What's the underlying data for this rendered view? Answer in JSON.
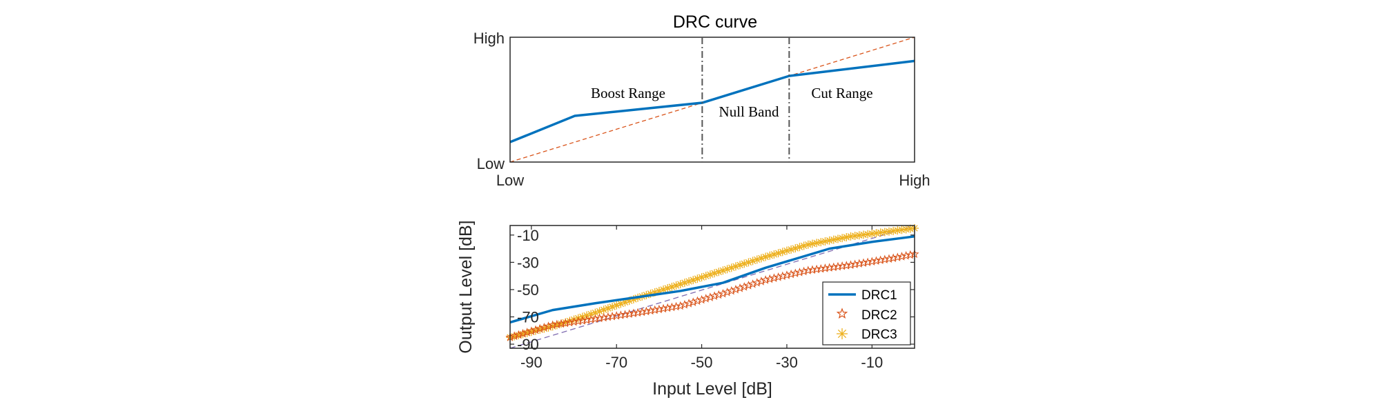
{
  "colors": {
    "drc1": "#0072BD",
    "drc2": "#D95319",
    "drc3": "#EDB120",
    "reference": "#7E6BB0",
    "divider": "#555555",
    "axis": "#262626"
  },
  "icons": {
    "drc2_marker": "pentagram-marker",
    "drc3_marker": "asterisk-marker"
  },
  "chart_data": [
    {
      "type": "line",
      "title": "DRC curve",
      "xlabel": "",
      "ylabel": "",
      "x_ticks": [
        "Low",
        "High"
      ],
      "y_ticks": [
        "Low",
        "High"
      ],
      "xlim": [
        0,
        1
      ],
      "ylim": [
        0,
        1
      ],
      "grid": false,
      "regions": [
        "Boost Range",
        "Null Band",
        "Cut Range"
      ],
      "dividers_x": [
        0.475,
        0.69
      ],
      "series": [
        {
          "name": "",
          "style": "solid",
          "x": [
            0,
            0.16,
            0.475,
            0.69,
            1
          ],
          "y": [
            0.16,
            0.37,
            0.475,
            0.69,
            0.81
          ]
        },
        {
          "name": "",
          "style": "dashed",
          "x": [
            0,
            1
          ],
          "y": [
            0,
            1
          ]
        }
      ]
    },
    {
      "type": "line",
      "title": "",
      "xlabel": "Input Level [dB]",
      "ylabel": "Output Level [dB]",
      "xlim": [
        -95,
        0
      ],
      "ylim": [
        -93,
        -3
      ],
      "x_ticks": [
        "-90",
        "-70",
        "-50",
        "-30",
        "-10"
      ],
      "y_ticks": [
        "-10",
        "-30",
        "-50",
        "-70",
        "-90"
      ],
      "grid": false,
      "legend": "bottom-right",
      "series": [
        {
          "name": "DRC1",
          "style": "solid",
          "x": [
            -95,
            -85,
            -75,
            -65,
            -55,
            -45,
            -35,
            -20,
            -10,
            0
          ],
          "y": [
            -74,
            -65,
            -60,
            -55.5,
            -51,
            -45,
            -34,
            -20,
            -15,
            -11
          ]
        },
        {
          "name": "DRC2",
          "style": "pentagram",
          "x": [
            -95,
            -85,
            -75,
            -65,
            -55,
            -45,
            -35,
            -25,
            -15,
            -5,
            0
          ],
          "y": [
            -85,
            -76,
            -71.5,
            -67,
            -62,
            -53,
            -43,
            -36,
            -32,
            -27,
            -24
          ]
        },
        {
          "name": "DRC3",
          "style": "asterisk",
          "x": [
            -95,
            -85,
            -75,
            -65,
            -55,
            -45,
            -35,
            -25,
            -15,
            -5,
            0
          ],
          "y": [
            -85,
            -77,
            -67,
            -56,
            -46,
            -36,
            -26,
            -17,
            -11,
            -7,
            -5
          ]
        },
        {
          "name": "",
          "style": "dashed",
          "x": [
            -95,
            0
          ],
          "y": [
            -95,
            0
          ]
        }
      ]
    }
  ]
}
